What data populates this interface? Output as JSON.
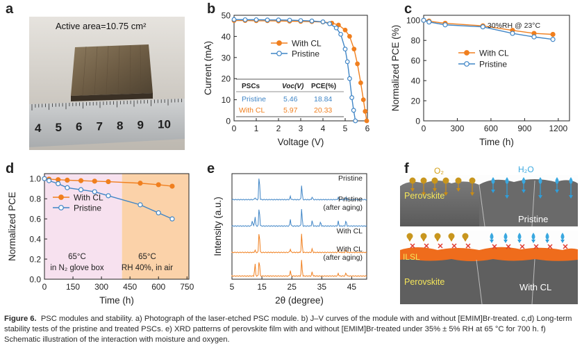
{
  "panels": {
    "a": "a",
    "b": "b",
    "c": "c",
    "d": "d",
    "e": "e",
    "f": "f"
  },
  "panel_a": {
    "label": "Active area=10.75 cm²",
    "ruler_numbers": [
      "4",
      "5",
      "6",
      "7",
      "8",
      "9",
      "10"
    ]
  },
  "panel_b": {
    "table_headers": [
      "PSCs",
      "Voc(V)",
      "PCE(%)"
    ],
    "table_rows": [
      [
        "Pristine",
        "5.46",
        "18.84"
      ],
      [
        "With CL",
        "5.97",
        "20.33"
      ]
    ]
  },
  "panel_c": {
    "annotation": "30%RH @ 23°C"
  },
  "panel_d": {
    "region1": [
      "65°C",
      "in N₂ glove box"
    ],
    "region2": [
      "65°C",
      "RH 40%, in air"
    ]
  },
  "panel_f": {
    "o2": "O₂",
    "h2o": "H₂O",
    "perovskite_top": "Perovskite",
    "pristine": "Pristine",
    "ilsl": "ILSL",
    "perovskite_bottom": "Perovskite",
    "with_cl": "With CL"
  },
  "colors": {
    "with_cl": "#f07f1e",
    "pristine": "#3f85c6"
  },
  "chart_data": [
    {
      "id": "b",
      "type": "line",
      "xlabel": "Voltage (V)",
      "ylabel": "Current (mA)",
      "xlim": [
        0,
        6
      ],
      "ylim": [
        0,
        50
      ],
      "xticks": [
        0,
        1,
        2,
        3,
        4,
        5,
        6
      ],
      "yticks": [
        0,
        10,
        20,
        30,
        40,
        50
      ],
      "series": [
        {
          "name": "With CL",
          "marker": "filled-circle",
          "x": [
            0,
            0.5,
            1,
            1.5,
            2,
            2.5,
            3,
            3.5,
            4,
            4.4,
            4.7,
            5,
            5.2,
            5.4,
            5.55,
            5.7,
            5.82,
            5.9,
            5.97
          ],
          "y": [
            47.5,
            47.5,
            47.4,
            47.4,
            47.3,
            47.2,
            47.1,
            47.0,
            46.8,
            46.3,
            45.4,
            43.0,
            40.0,
            34.0,
            27.0,
            18.0,
            10.0,
            4.5,
            0
          ]
        },
        {
          "name": "Pristine",
          "marker": "open-circle",
          "x": [
            0,
            0.5,
            1,
            1.5,
            2,
            2.5,
            3,
            3.5,
            4,
            4.3,
            4.6,
            4.8,
            5,
            5.1,
            5.2,
            5.3,
            5.38,
            5.46
          ],
          "y": [
            48.0,
            47.9,
            47.9,
            47.8,
            47.8,
            47.7,
            47.5,
            47.3,
            46.9,
            46.0,
            44.0,
            41.0,
            34.0,
            28.0,
            20.0,
            11.0,
            5.0,
            0
          ]
        }
      ]
    },
    {
      "id": "c",
      "type": "line",
      "xlabel": "Time (h)",
      "ylabel": "Normalized PCE (%)",
      "xlim": [
        0,
        1300
      ],
      "ylim": [
        0,
        105
      ],
      "xticks": [
        0,
        300,
        600,
        900,
        1200
      ],
      "yticks": [
        0,
        20,
        40,
        60,
        80,
        100
      ],
      "series": [
        {
          "name": "With CL",
          "marker": "filled-circle",
          "x": [
            0,
            48,
            192,
            528,
            792,
            984,
            1152
          ],
          "y": [
            100,
            99.2,
            97,
            94.5,
            90,
            87,
            86
          ]
        },
        {
          "name": "Pristine",
          "marker": "open-circle",
          "x": [
            0,
            48,
            192,
            528,
            792,
            984,
            1152
          ],
          "y": [
            100,
            98.3,
            95.5,
            93.5,
            87,
            83.5,
            81
          ]
        }
      ]
    },
    {
      "id": "d",
      "type": "line",
      "xlabel": "Time (h)",
      "ylabel": "Normalized PCE",
      "xlim": [
        0,
        760
      ],
      "ylim": [
        0,
        1.05
      ],
      "xticks": [
        0,
        150,
        300,
        450,
        600,
        750
      ],
      "yticks": [
        0,
        0.2,
        0.4,
        0.6,
        0.8,
        1.0
      ],
      "series": [
        {
          "name": "With CL",
          "marker": "filled-circle",
          "x": [
            0,
            24,
            72,
            120,
            192,
            264,
            336,
            504,
            600,
            672
          ],
          "y": [
            1.0,
            0.995,
            0.99,
            0.985,
            0.98,
            0.975,
            0.97,
            0.955,
            0.94,
            0.925
          ]
        },
        {
          "name": "Pristine",
          "marker": "open-circle",
          "x": [
            0,
            24,
            72,
            120,
            192,
            264,
            336,
            504,
            600,
            672
          ],
          "y": [
            1.0,
            0.98,
            0.95,
            0.91,
            0.89,
            0.87,
            0.83,
            0.74,
            0.66,
            0.6
          ]
        }
      ]
    },
    {
      "id": "e",
      "type": "line",
      "xlabel": "2θ (degree)",
      "ylabel": "Intensity (a.u.)",
      "xlim": [
        5,
        50
      ],
      "xticks": [
        5,
        15,
        25,
        35,
        45
      ],
      "xticklabels": [
        "5",
        "15",
        "25",
        "35",
        "45"
      ],
      "series": [
        {
          "name": "Pristine",
          "peaks": [
            [
              12.7,
              3
            ],
            [
              14.1,
              38
            ],
            [
              24.5,
              5
            ],
            [
              28.3,
              22
            ],
            [
              31.8,
              4
            ],
            [
              40.5,
              3
            ],
            [
              43.1,
              4
            ]
          ]
        },
        {
          "name": "Pristine\n(after aging)",
          "peaks": [
            [
              11.8,
              8
            ],
            [
              12.7,
              14
            ],
            [
              14.1,
              30
            ],
            [
              24.5,
              10
            ],
            [
              28.3,
              26
            ],
            [
              31.8,
              8
            ],
            [
              34.6,
              6
            ],
            [
              40.5,
              7
            ],
            [
              43.1,
              8
            ]
          ]
        },
        {
          "name": "With CL",
          "peaks": [
            [
              12.7,
              3
            ],
            [
              14.1,
              34
            ],
            [
              24.5,
              5
            ],
            [
              28.3,
              28
            ],
            [
              31.8,
              5
            ],
            [
              40.5,
              3
            ],
            [
              43.1,
              4
            ]
          ]
        },
        {
          "name": "With CL\n(after aging)",
          "peaks": [
            [
              12.7,
              18
            ],
            [
              14.1,
              26
            ],
            [
              24.5,
              8
            ],
            [
              28.3,
              24
            ],
            [
              31.8,
              6
            ],
            [
              40.5,
              4
            ],
            [
              43.1,
              5
            ]
          ]
        }
      ]
    }
  ],
  "caption": {
    "lead": "Figure 6.",
    "text": "PSC modules and stability. a) Photograph of the laser-etched PSC module. b) J–V curves of the module with and without [EMIM]Br-treated. c,d) Long-term stability tests of the pristine and treated PSCs. e) XRD patterns of perovskite film with and without [EMIM]Br-treated under 35% ± 5% RH at 65 °C for 700 h. f) Schematic illustration of the interaction with moisture and oxygen."
  }
}
